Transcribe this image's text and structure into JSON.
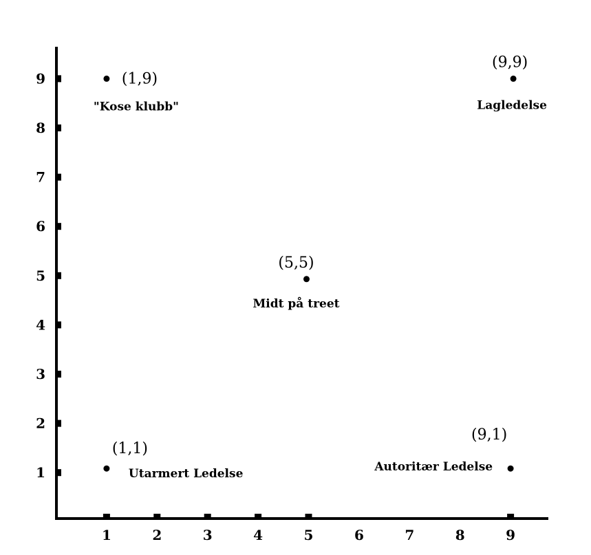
{
  "chart_data": {
    "type": "scatter",
    "title": "",
    "xlabel": "",
    "ylabel": "",
    "xlim": [
      0,
      9.7
    ],
    "ylim": [
      0,
      9.6
    ],
    "x_ticks": [
      "1",
      "2",
      "3",
      "4",
      "5",
      "6",
      "7",
      "8",
      "9"
    ],
    "x_tick_values": [
      1,
      2,
      3,
      4,
      5,
      6,
      7,
      8,
      9
    ],
    "x_marked_ticks": [
      1,
      2,
      3,
      4,
      5,
      9
    ],
    "y_ticks": [
      "1",
      "2",
      "3",
      "4",
      "5",
      "6",
      "7",
      "8",
      "9"
    ],
    "y_tick_values": [
      1,
      2,
      3,
      4,
      5,
      6,
      7,
      8,
      9
    ],
    "grid": false,
    "points": [
      {
        "x": 1,
        "y": 9,
        "coord_label": "(1,9)",
        "label": "\"Kose klubb\""
      },
      {
        "x": 9,
        "y": 9,
        "coord_label": "(9,9)",
        "label": "Lagledelse"
      },
      {
        "x": 5,
        "y": 5,
        "coord_label": "(5,5)",
        "label": "Midt på treet"
      },
      {
        "x": 1,
        "y": 1,
        "coord_label": "(1,1)",
        "label": "Utarmert Ledelse"
      },
      {
        "x": 9,
        "y": 1,
        "coord_label": "(9,1)",
        "label": "Autoritær Ledelse"
      }
    ]
  }
}
